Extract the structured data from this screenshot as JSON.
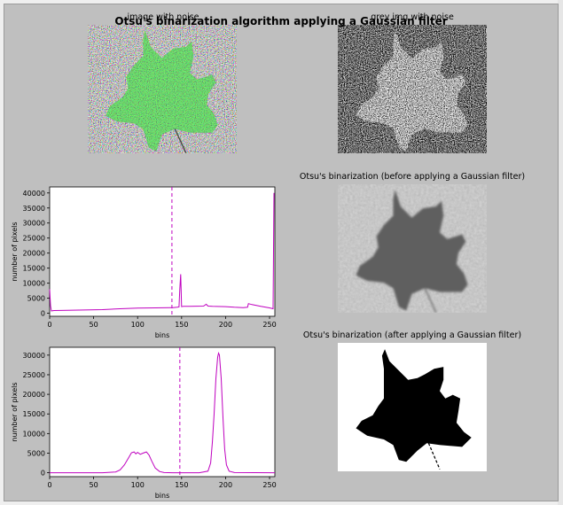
{
  "figure": {
    "suptitle": "Otsu's binarization algorithm applying a Gaussian filter",
    "panels": {
      "noise_color_title": "image with noise",
      "noise_gray_title": "grey img with noise",
      "otsu_before_title": "Otsu's binarization (before applying a Gaussian filter)",
      "otsu_after_title": "Otsu's binarization (after applying a Gaussian filter)"
    }
  },
  "colors": {
    "figure_bg": "#bfbfbf",
    "hist_line": "#bf00bf",
    "leaf_green": "#2a8a2a"
  },
  "chart_data": [
    {
      "type": "line",
      "title": "",
      "xlabel": "bins",
      "ylabel": "number of pixels",
      "xlim": [
        0,
        256
      ],
      "ylim": [
        -1000,
        42000
      ],
      "xticks": [
        0,
        50,
        100,
        150,
        200,
        250
      ],
      "yticks": [
        0,
        5000,
        10000,
        15000,
        20000,
        25000,
        30000,
        35000,
        40000
      ],
      "threshold": 139,
      "series": [
        {
          "x": [
            0,
            1,
            2,
            5,
            20,
            40,
            60,
            80,
            100,
            120,
            138,
            140,
            145,
            147,
            148,
            149,
            150,
            152,
            160,
            175,
            178,
            180,
            185,
            200,
            210,
            220,
            225,
            226,
            230,
            240,
            250,
            254,
            255
          ],
          "values": [
            8000,
            2500,
            800,
            900,
            1000,
            1100,
            1200,
            1500,
            1700,
            1800,
            1900,
            1900,
            2000,
            2100,
            8000,
            13000,
            2200,
            2300,
            2300,
            2400,
            3000,
            2400,
            2300,
            2200,
            2000,
            1900,
            2000,
            3200,
            2900,
            2300,
            1800,
            1500,
            40000
          ]
        }
      ]
    },
    {
      "type": "line",
      "title": "",
      "xlabel": "bins",
      "ylabel": "number of pixels",
      "xlim": [
        0,
        256
      ],
      "ylim": [
        -1000,
        32000
      ],
      "xticks": [
        0,
        50,
        100,
        150,
        200,
        250
      ],
      "yticks": [
        0,
        5000,
        10000,
        15000,
        20000,
        25000,
        30000
      ],
      "threshold": 148,
      "series": [
        {
          "x": [
            0,
            60,
            75,
            80,
            85,
            90,
            93,
            96,
            98,
            100,
            103,
            106,
            110,
            113,
            116,
            120,
            125,
            130,
            140,
            170,
            180,
            183,
            185,
            187,
            189,
            191,
            192,
            193,
            195,
            197,
            199,
            201,
            204,
            210,
            256
          ],
          "values": [
            0,
            0,
            200,
            700,
            2000,
            3900,
            5100,
            5300,
            4800,
            5200,
            4700,
            5000,
            5300,
            4500,
            3000,
            1200,
            300,
            50,
            0,
            0,
            400,
            2500,
            8000,
            15000,
            24000,
            29500,
            30500,
            30000,
            24000,
            14000,
            6000,
            2000,
            400,
            50,
            0
          ]
        }
      ]
    }
  ]
}
